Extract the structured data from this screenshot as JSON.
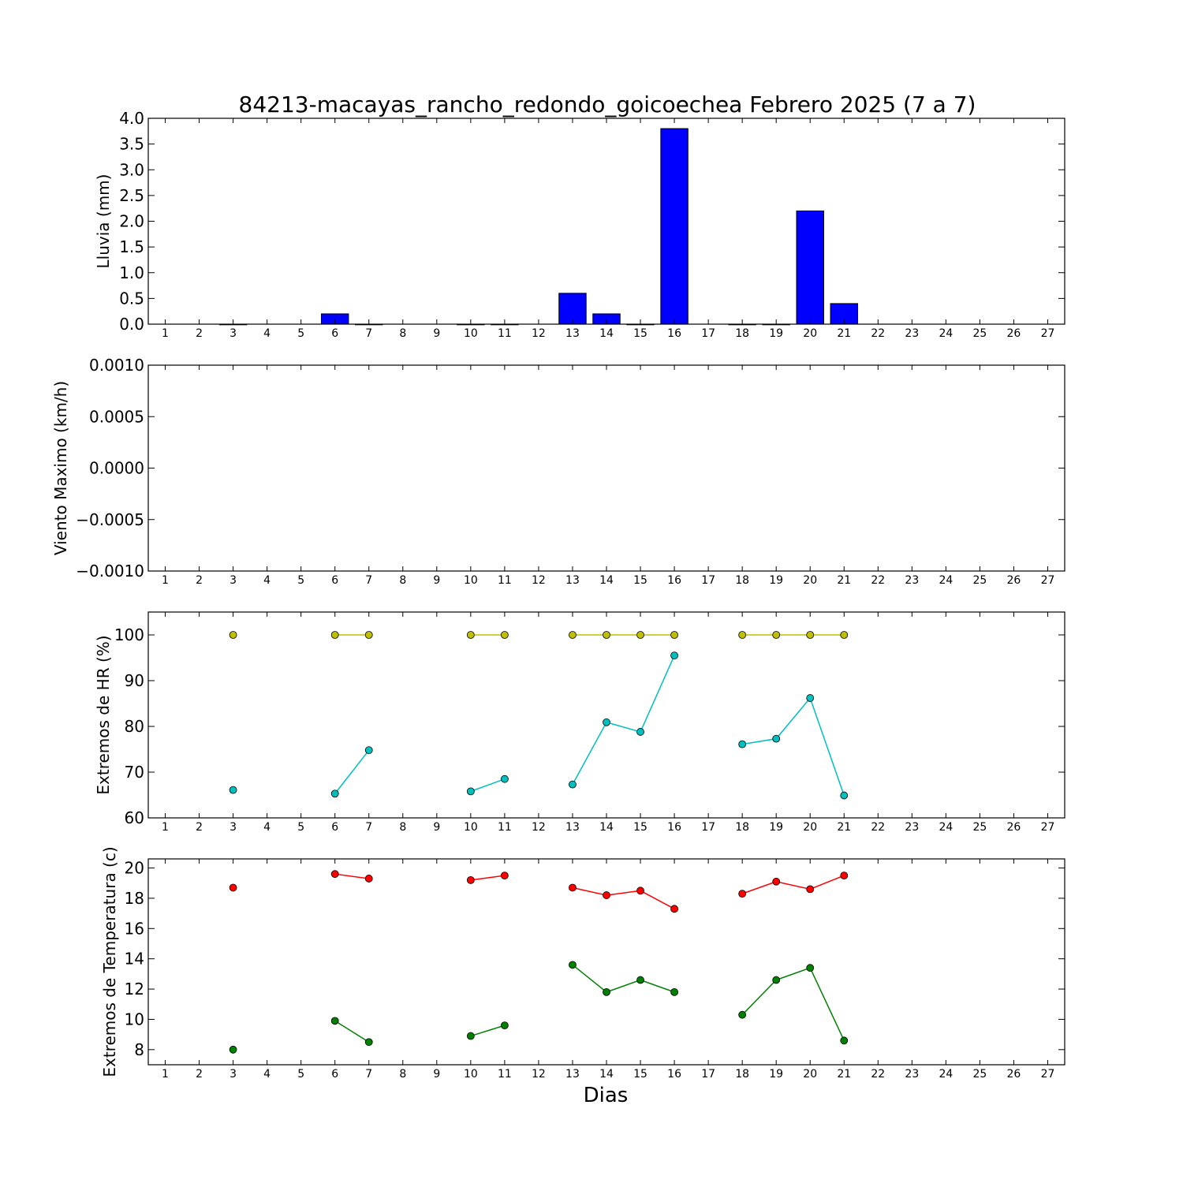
{
  "title": "84213-macayas_rancho_redondo_goicoechea Febrero 2025  (7 a 7)",
  "xlabel": "Dias",
  "colors": {
    "bar": "#0000ff",
    "hr_max": "#bfbf00",
    "hr_min": "#00bfbf",
    "temp_max": "#ff0000",
    "temp_min": "#008000"
  },
  "chart_data": [
    {
      "type": "bar",
      "ylabel": "Lluvia (mm)",
      "ylim": [
        0,
        4
      ],
      "yticks": [
        "0.0",
        "0.5",
        "1.0",
        "1.5",
        "2.0",
        "2.5",
        "3.0",
        "3.5",
        "4.0"
      ],
      "ytick_values": [
        0,
        0.5,
        1.0,
        1.5,
        2.0,
        2.5,
        3.0,
        3.5,
        4.0
      ],
      "xlim": [
        0.5,
        27.5
      ],
      "x": [
        3,
        6,
        7,
        10,
        11,
        13,
        14,
        15,
        16,
        18,
        19,
        20,
        21
      ],
      "values": [
        0.0,
        0.2,
        0.0,
        0.0,
        0.0,
        0.6,
        0.2,
        0.0,
        3.8,
        0.0,
        0.0,
        2.2,
        0.4
      ],
      "xtick_labels": [
        "1",
        "2",
        "3",
        "4",
        "5",
        "6",
        "7",
        "8",
        "9",
        "10",
        "11",
        "12",
        "13",
        "14",
        "15",
        "16",
        "17",
        "18",
        "19",
        "20",
        "21",
        "22",
        "23",
        "24",
        "25",
        "26",
        "27"
      ]
    },
    {
      "type": "line",
      "ylabel": "Viento Maximo (km/h)",
      "ylim": [
        -0.001,
        0.001
      ],
      "yticks": [
        "−0.0010",
        "−0.0005",
        "0.0000",
        "0.0005",
        "0.0010"
      ],
      "ytick_values": [
        -0.001,
        -0.0005,
        0,
        0.0005,
        0.001
      ],
      "xlim": [
        0.5,
        27.5
      ],
      "series": [],
      "xtick_labels": [
        "1",
        "2",
        "3",
        "4",
        "5",
        "6",
        "7",
        "8",
        "9",
        "10",
        "11",
        "12",
        "13",
        "14",
        "15",
        "16",
        "17",
        "18",
        "19",
        "20",
        "21",
        "22",
        "23",
        "24",
        "25",
        "26",
        "27"
      ]
    },
    {
      "type": "line",
      "ylabel": "Extremos de HR (%)",
      "ylim": [
        60,
        105
      ],
      "yticks": [
        "60",
        "70",
        "80",
        "90",
        "100"
      ],
      "ytick_values": [
        60,
        70,
        80,
        90,
        100
      ],
      "xlim": [
        0.5,
        27.5
      ],
      "series": [
        {
          "color_key": "hr_max",
          "segments": [
            {
              "x": [
                3
              ],
              "values": [
                100
              ]
            },
            {
              "x": [
                6,
                7
              ],
              "values": [
                100,
                100
              ]
            },
            {
              "x": [
                10,
                11
              ],
              "values": [
                100,
                100
              ]
            },
            {
              "x": [
                13,
                14,
                15,
                16
              ],
              "values": [
                100,
                100,
                100,
                100
              ]
            },
            {
              "x": [
                18,
                19,
                20,
                21
              ],
              "values": [
                100,
                100,
                100,
                100
              ]
            }
          ]
        },
        {
          "color_key": "hr_min",
          "segments": [
            {
              "x": [
                3
              ],
              "values": [
                66.1
              ]
            },
            {
              "x": [
                6,
                7
              ],
              "values": [
                65.3,
                74.8
              ]
            },
            {
              "x": [
                10,
                11
              ],
              "values": [
                65.8,
                68.5
              ]
            },
            {
              "x": [
                13,
                14,
                15,
                16
              ],
              "values": [
                67.3,
                80.9,
                78.8,
                95.5
              ]
            },
            {
              "x": [
                18,
                19,
                20,
                21
              ],
              "values": [
                76.1,
                77.3,
                86.2,
                64.9
              ]
            }
          ]
        }
      ],
      "xtick_labels": [
        "1",
        "2",
        "3",
        "4",
        "5",
        "6",
        "7",
        "8",
        "9",
        "10",
        "11",
        "12",
        "13",
        "14",
        "15",
        "16",
        "17",
        "18",
        "19",
        "20",
        "21",
        "22",
        "23",
        "24",
        "25",
        "26",
        "27"
      ]
    },
    {
      "type": "line",
      "ylabel": "Extremos de Temperatura (c)",
      "ylim": [
        7,
        20.6
      ],
      "yticks": [
        "8",
        "10",
        "12",
        "14",
        "16",
        "18",
        "20"
      ],
      "ytick_values": [
        8,
        10,
        12,
        14,
        16,
        18,
        20
      ],
      "xlim": [
        0.5,
        27.5
      ],
      "series": [
        {
          "color_key": "temp_max",
          "segments": [
            {
              "x": [
                3
              ],
              "values": [
                18.7
              ]
            },
            {
              "x": [
                6,
                7
              ],
              "values": [
                19.6,
                19.3
              ]
            },
            {
              "x": [
                10,
                11
              ],
              "values": [
                19.2,
                19.5
              ]
            },
            {
              "x": [
                13,
                14,
                15,
                16
              ],
              "values": [
                18.7,
                18.2,
                18.5,
                17.3
              ]
            },
            {
              "x": [
                18,
                19,
                20,
                21
              ],
              "values": [
                18.3,
                19.1,
                18.6,
                19.5
              ]
            }
          ]
        },
        {
          "color_key": "temp_min",
          "segments": [
            {
              "x": [
                3
              ],
              "values": [
                8.0
              ]
            },
            {
              "x": [
                6,
                7
              ],
              "values": [
                9.9,
                8.5
              ]
            },
            {
              "x": [
                10,
                11
              ],
              "values": [
                8.9,
                9.6
              ]
            },
            {
              "x": [
                13,
                14,
                15,
                16
              ],
              "values": [
                13.6,
                11.8,
                12.6,
                11.8
              ]
            },
            {
              "x": [
                18,
                19,
                20,
                21
              ],
              "values": [
                10.3,
                12.6,
                13.4,
                8.6
              ]
            }
          ]
        }
      ],
      "xtick_labels": [
        "1",
        "2",
        "3",
        "4",
        "5",
        "6",
        "7",
        "8",
        "9",
        "10",
        "11",
        "12",
        "13",
        "14",
        "15",
        "16",
        "17",
        "18",
        "19",
        "20",
        "21",
        "22",
        "23",
        "24",
        "25",
        "26",
        "27"
      ]
    }
  ]
}
